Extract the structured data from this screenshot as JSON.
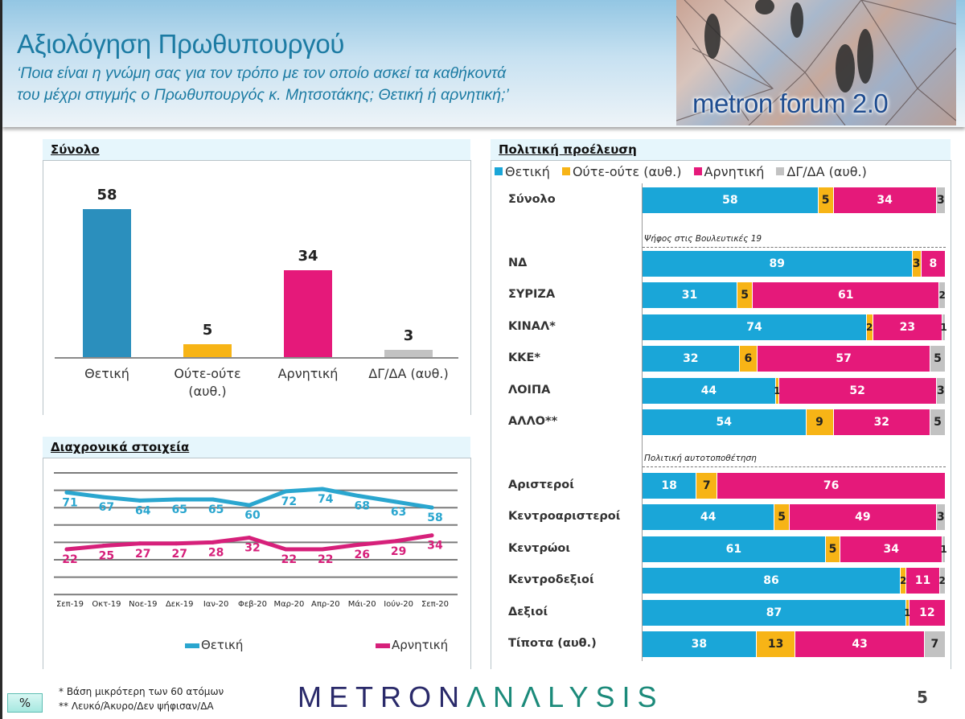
{
  "header": {
    "title": "Αξιολόγηση Πρωθυπουργού",
    "subtitle_line1": "‘Ποια είναι η γνώμη σας για τον τρόπο με τον οποίο ασκεί τα καθήκοντά",
    "subtitle_line2": "του μέχρι στιγμής ο Πρωθυπουργός κ. Μητσοτάκης; Θετική ή αρνητική;’",
    "logo_text": "metron forum 2.0"
  },
  "colors": {
    "positive": "#1aa6d8",
    "neutral": "#f7b416",
    "negative": "#e5197a",
    "dk": "#c2c2c2",
    "bar_positive": "#2b8fbd"
  },
  "chart_data": [
    {
      "type": "bar",
      "title": "Σύνολο",
      "categories": [
        "Θετική",
        "Ούτε-ούτε (αυθ.)",
        "Αρνητική",
        "ΔΓ/ΔΑ (αυθ.)"
      ],
      "category_lines": [
        [
          "Θετική"
        ],
        [
          "Ούτε-ούτε",
          "(αυθ.)"
        ],
        [
          "Αρνητική"
        ],
        [
          "ΔΓ/ΔΑ (αυθ.)"
        ]
      ],
      "values": [
        58,
        5,
        34,
        3
      ],
      "labels": [
        "58",
        "5",
        "34",
        "3"
      ],
      "ylim": [
        0,
        60
      ],
      "xlabel": "",
      "ylabel": ""
    },
    {
      "type": "line",
      "title": "Διαχρονικά στοιχεία",
      "x": [
        "Σεπ-19",
        "Οκτ-19",
        "Νοε-19",
        "Δεκ-19",
        "Ιαν-20",
        "Φεβ-20",
        "Μαρ-20",
        "Απρ-20",
        "Μάι-20",
        "Ιούν-20",
        "Σεπ-20"
      ],
      "series": [
        {
          "name": "Θετική",
          "values": [
            71,
            67,
            64,
            65,
            65,
            60,
            72,
            74,
            68,
            63,
            58
          ],
          "labels": [
            "71",
            "67",
            "64",
            "65",
            "65",
            "60",
            "72",
            "74",
            "68",
            "63",
            "58"
          ]
        },
        {
          "name": "Αρνητική",
          "values": [
            22,
            25,
            27,
            27,
            28,
            32,
            22,
            22,
            26,
            29,
            34
          ],
          "labels": [
            "22",
            "25",
            "27",
            "27",
            "28",
            "32",
            "22",
            "22",
            "26",
            "29",
            "34"
          ]
        }
      ],
      "ylim": [
        0,
        90
      ],
      "grid": true,
      "legend": "bottom"
    },
    {
      "type": "bar",
      "orientation": "horizontal-stacked",
      "title": "Πολιτική προέλευση",
      "legend": [
        "Θετική",
        "Ούτε-ούτε (αυθ.)",
        "Αρνητική",
        "ΔΓ/ΔΑ (αυθ.)"
      ],
      "legend_position": "top",
      "rows": [
        {
          "label": "Σύνολο",
          "values": [
            58,
            5,
            34,
            3
          ]
        },
        {
          "group": "Ψήφος στις Βουλευτικές 19"
        },
        {
          "label": "ΝΔ",
          "values": [
            89,
            3,
            8,
            0
          ]
        },
        {
          "label": "ΣΥΡΙΖΑ",
          "values": [
            31,
            5,
            61,
            2
          ]
        },
        {
          "label": "ΚΙΝΑΛ*",
          "values": [
            74,
            2,
            23,
            1
          ]
        },
        {
          "label": "ΚΚΕ*",
          "values": [
            32,
            6,
            57,
            5
          ]
        },
        {
          "label": "ΛΟΙΠΑ",
          "values": [
            44,
            1,
            52,
            3
          ]
        },
        {
          "label": "ΑΛΛΟ**",
          "values": [
            54,
            9,
            32,
            5
          ]
        },
        {
          "group": "Πολιτική αυτοτοποθέτηση"
        },
        {
          "label": "Αριστεροί",
          "values": [
            18,
            7,
            76,
            0
          ]
        },
        {
          "label": "Κεντροαριστεροί",
          "values": [
            44,
            5,
            49,
            3
          ]
        },
        {
          "label": "Κεντρώοι",
          "values": [
            61,
            5,
            34,
            1
          ]
        },
        {
          "label": "Κεντροδεξιοί",
          "values": [
            86,
            2,
            11,
            2
          ]
        },
        {
          "label": "Δεξιοί",
          "values": [
            87,
            1,
            12,
            0
          ]
        },
        {
          "label": "Τίποτα (αυθ.)",
          "values": [
            38,
            13,
            43,
            7
          ]
        }
      ]
    }
  ],
  "footer": {
    "unit_badge": "%",
    "note1": "*  Βάση μικρότερη των 60 ατόμων",
    "note2": "** Λευκό/Άκυρο/Δεν ψήφισαν/ΔΑ",
    "brand_part1": "METRON",
    "brand_part2": "ΛNΛLYSIS",
    "page_number": "5"
  }
}
